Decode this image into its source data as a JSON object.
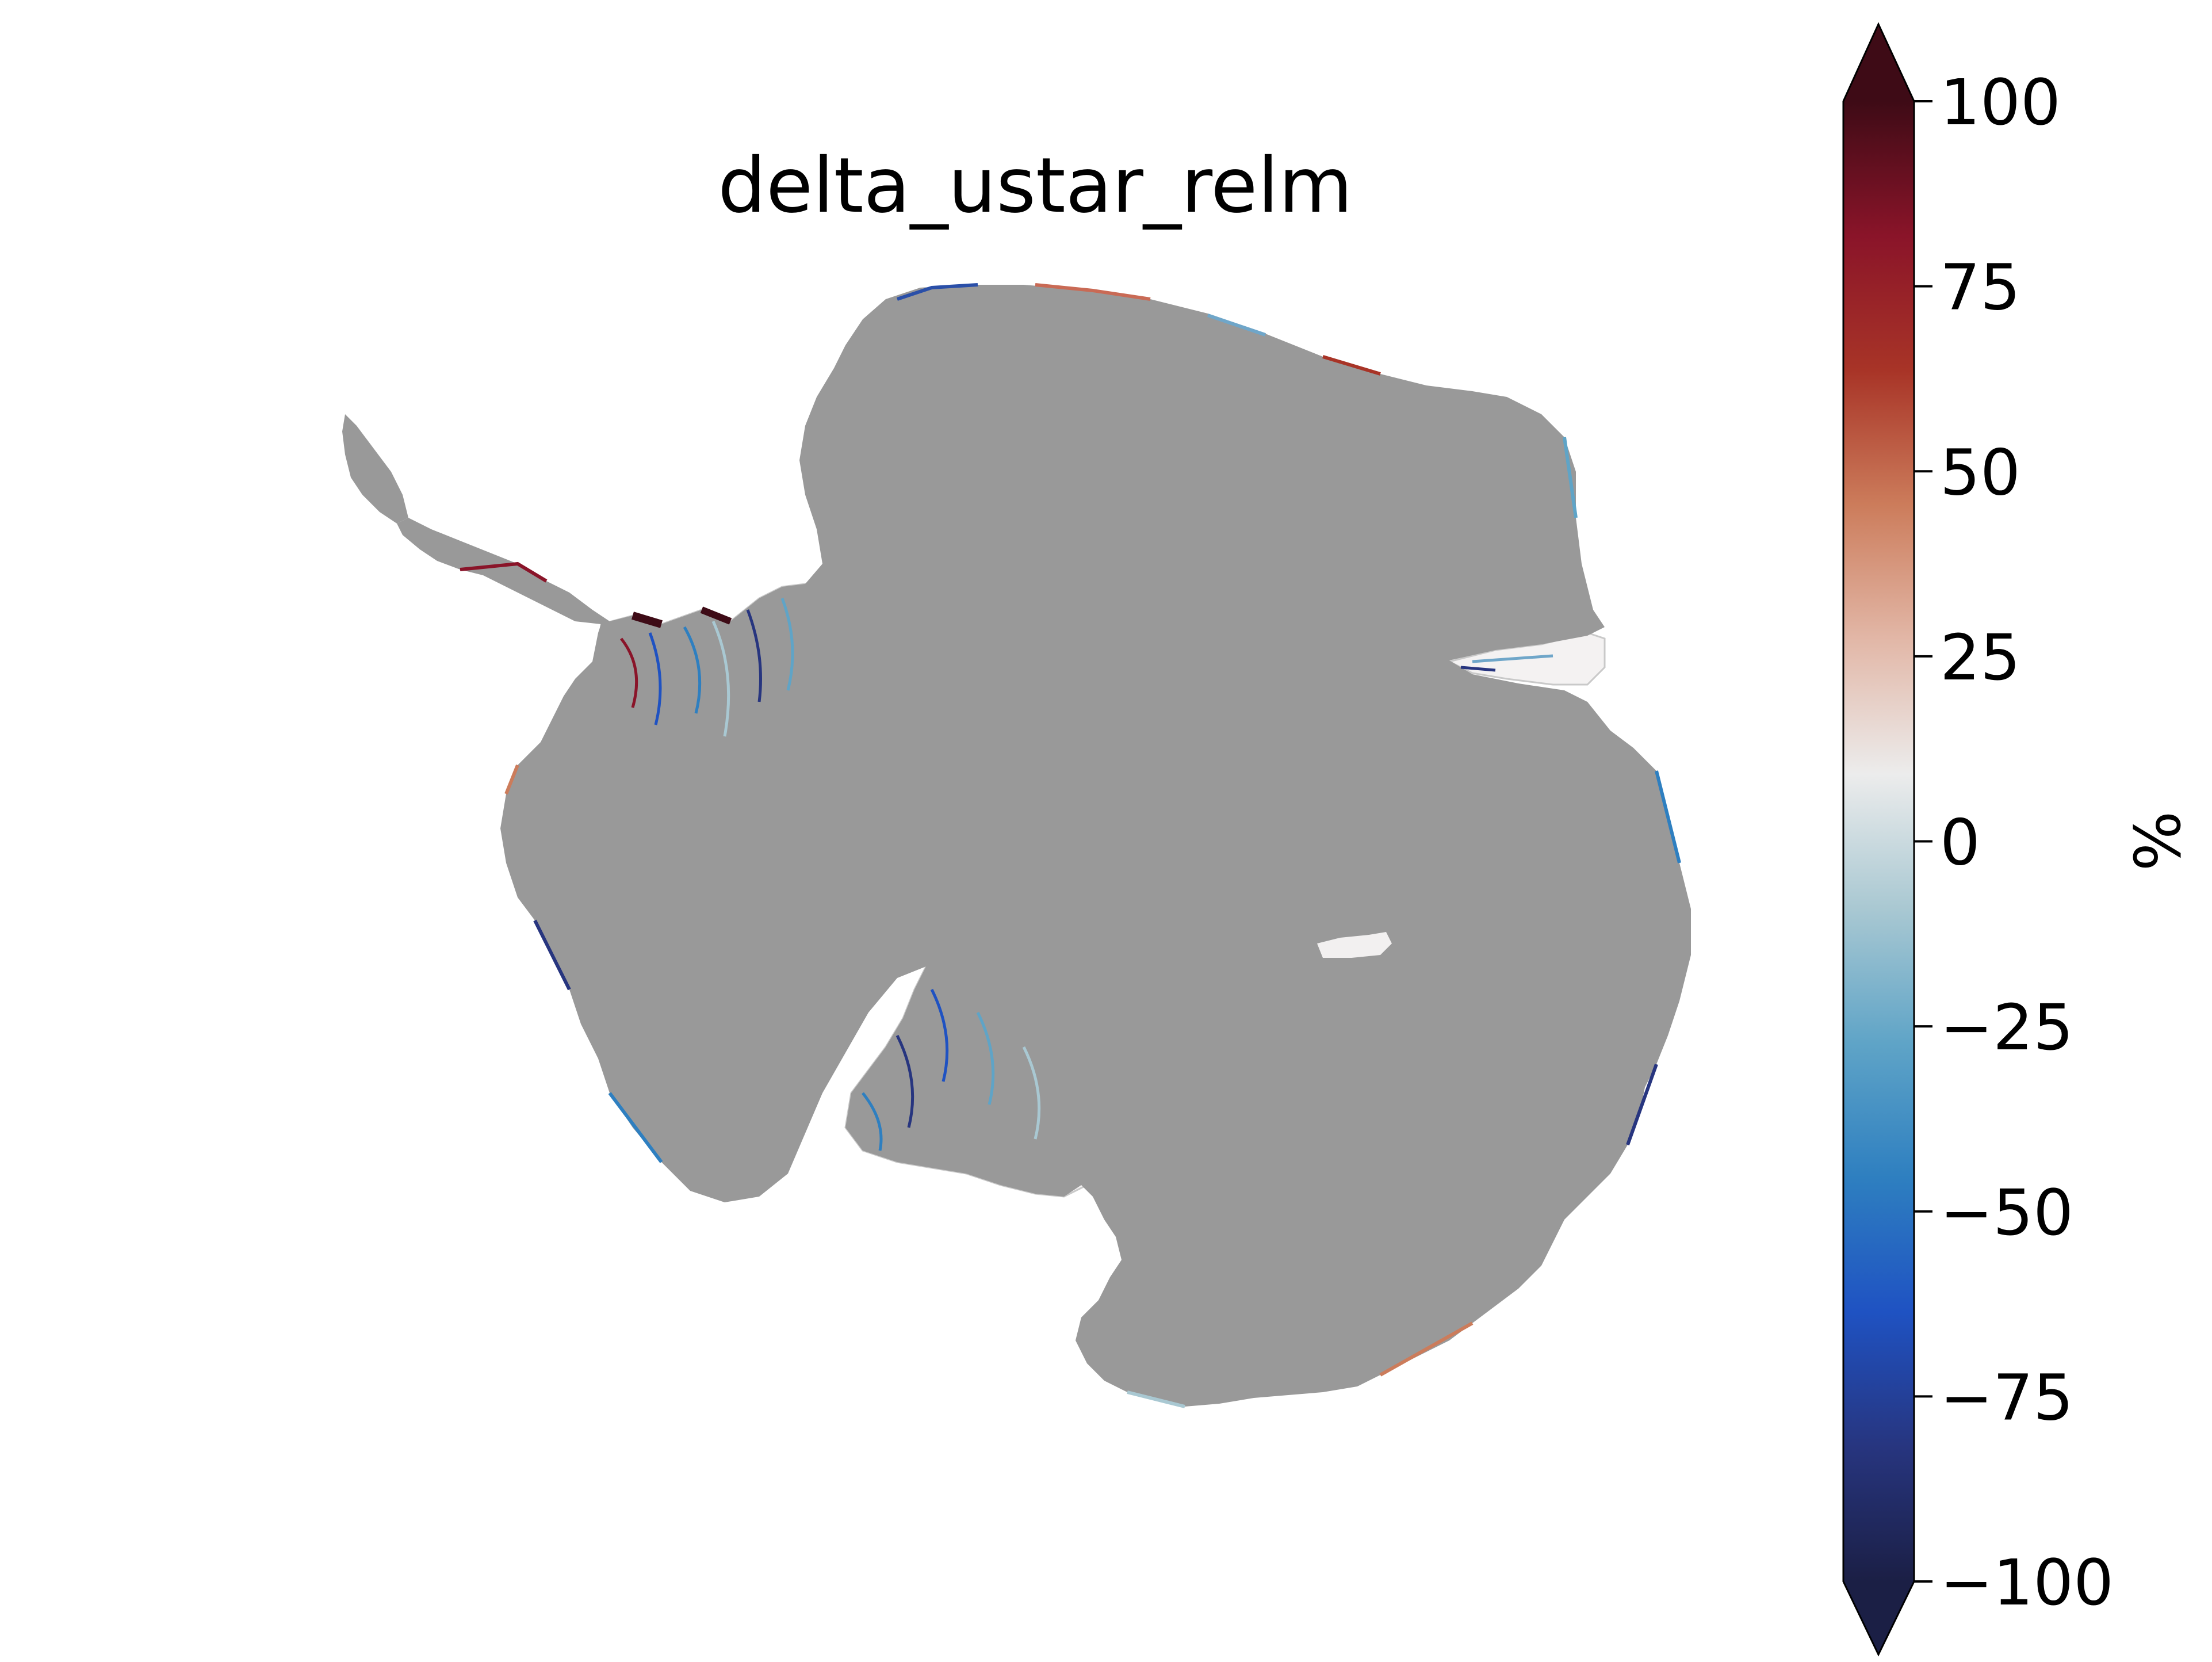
{
  "figure": {
    "title": "delta_ustar_relm"
  },
  "colorbar": {
    "label": "%",
    "ticks": [
      "100",
      "75",
      "50",
      "25",
      "0",
      "−25",
      "−50",
      "−75",
      "−100"
    ],
    "tick_values": [
      100,
      75,
      50,
      25,
      0,
      -25,
      -50,
      -75,
      -100
    ],
    "range": [
      -100,
      100
    ],
    "extend": "both",
    "colormap_stops": [
      "#1b1f45",
      "#27357f",
      "#1f52c2",
      "#2e7fc0",
      "#5fa4c7",
      "#a9c8d2",
      "#ececec",
      "#e2b7a7",
      "#cc7c5b",
      "#a83427",
      "#8a1429",
      "#3e0b16"
    ]
  },
  "colors": {
    "grounded_ice": "#999999",
    "background": "#ffffff",
    "lake_patch": "#f2f0f0"
  }
}
